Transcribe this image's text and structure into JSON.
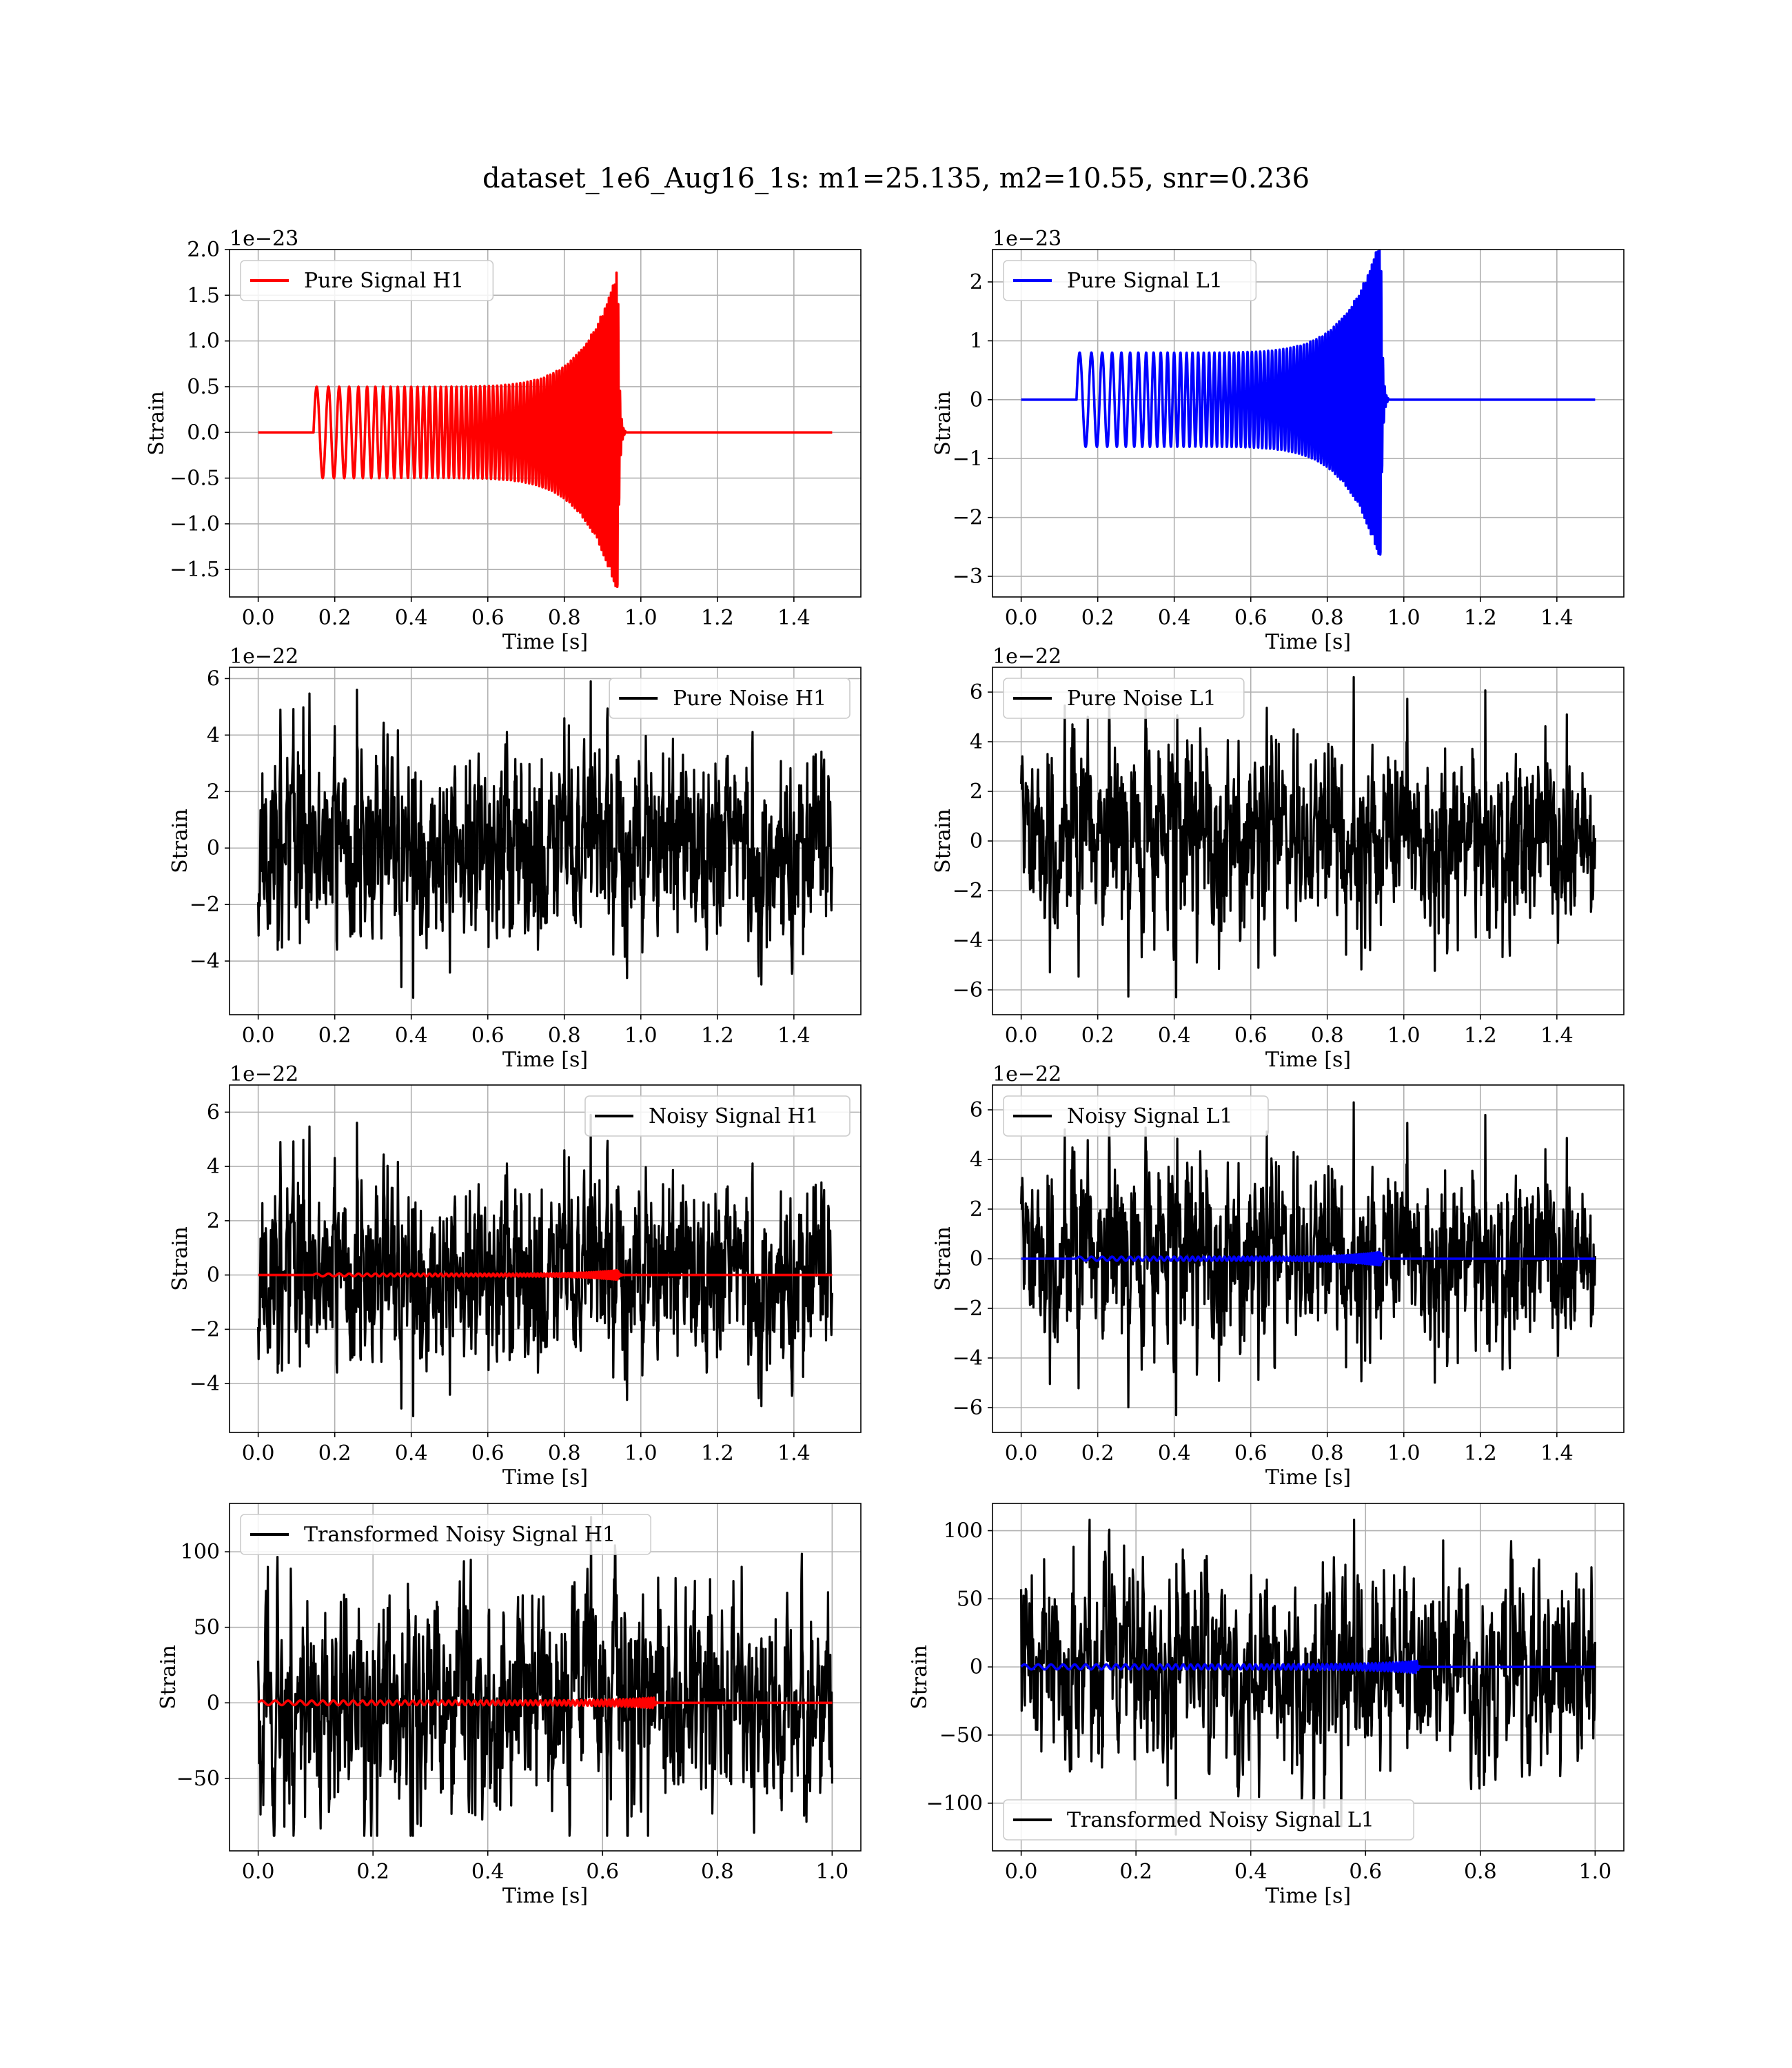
{
  "figure": {
    "title": "dataset_1e6_Aug16_1s: m1=25.135, m2=10.55, snr=0.236"
  },
  "colors": {
    "signal_h1": "#ff0000",
    "signal_l1": "#0000ff",
    "noise": "#000000",
    "grid": "#b0b0b0"
  },
  "chart_data": [
    {
      "id": "pure-signal-h1",
      "type": "line",
      "xlabel": "Time [s]",
      "ylabel": "Strain",
      "offset_text": "1e−23",
      "legend": {
        "label": "Pure Signal H1",
        "placement": "upper left"
      },
      "xlim": [
        -0.075,
        1.575
      ],
      "ylim": [
        -1.8,
        2.0
      ],
      "xticks": [
        0.0,
        0.2,
        0.4,
        0.6,
        0.8,
        1.0,
        1.2,
        1.4
      ],
      "xtick_labels": [
        "0.0",
        "0.2",
        "0.4",
        "0.6",
        "0.8",
        "1.0",
        "1.2",
        "1.4"
      ],
      "yticks": [
        -1.5,
        -1.0,
        -0.5,
        0.0,
        0.5,
        1.0,
        1.5,
        2.0
      ],
      "ytick_labels": [
        "−1.5",
        "−1.0",
        "−0.5",
        "0.0",
        "0.5",
        "1.0",
        "1.5",
        "2.0"
      ],
      "grid": true,
      "series": [
        {
          "name": "Pure Signal H1",
          "kind": "chirp",
          "color": "#ff0000",
          "x_start": 0.0,
          "x_end": 1.5,
          "t_start": 0.145,
          "t_merge": 0.94,
          "ringdown": 0.02,
          "amp_start": 0.5,
          "amp_peak": 1.8,
          "f_start": 30,
          "f_end": 220,
          "sample_step": 0.0005
        }
      ]
    },
    {
      "id": "pure-signal-l1",
      "type": "line",
      "xlabel": "Time [s]",
      "ylabel": "Strain",
      "offset_text": "1e−23",
      "legend": {
        "label": "Pure Signal L1",
        "placement": "upper left"
      },
      "xlim": [
        -0.075,
        1.575
      ],
      "ylim": [
        -3.35,
        2.55
      ],
      "xticks": [
        0.0,
        0.2,
        0.4,
        0.6,
        0.8,
        1.0,
        1.2,
        1.4
      ],
      "xtick_labels": [
        "0.0",
        "0.2",
        "0.4",
        "0.6",
        "0.8",
        "1.0",
        "1.2",
        "1.4"
      ],
      "yticks": [
        -3,
        -2,
        -1,
        0,
        1,
        2
      ],
      "ytick_labels": [
        "−3",
        "−2",
        "−1",
        "0",
        "1",
        "2"
      ],
      "grid": true,
      "series": [
        {
          "name": "Pure Signal L1",
          "kind": "chirp",
          "color": "#0000ff",
          "x_start": 0.0,
          "x_end": 1.5,
          "t_start": 0.145,
          "t_merge": 0.94,
          "ringdown": 0.02,
          "amp_start": 0.8,
          "amp_peak": 2.8,
          "f_start": 30,
          "f_end": 220,
          "sample_step": 0.0005
        }
      ]
    },
    {
      "id": "pure-noise-h1",
      "type": "line",
      "xlabel": "Time [s]",
      "ylabel": "Strain",
      "offset_text": "1e−22",
      "legend": {
        "label": "Pure Noise H1",
        "placement": "upper right"
      },
      "xlim": [
        -0.075,
        1.575
      ],
      "ylim": [
        -5.9,
        6.4
      ],
      "xticks": [
        0.0,
        0.2,
        0.4,
        0.6,
        0.8,
        1.0,
        1.2,
        1.4
      ],
      "xtick_labels": [
        "0.0",
        "0.2",
        "0.4",
        "0.6",
        "0.8",
        "1.0",
        "1.2",
        "1.4"
      ],
      "yticks": [
        -4,
        -2,
        0,
        2,
        4,
        6
      ],
      "ytick_labels": [
        "−4",
        "−2",
        "0",
        "2",
        "4",
        "6"
      ],
      "grid": true,
      "series": [
        {
          "name": "Pure Noise H1",
          "kind": "noise",
          "color": "#000000",
          "x_start": 0.0,
          "x_end": 1.5,
          "sigma": 1.6,
          "min": -5.3,
          "max": 5.9,
          "seed": 11,
          "sample_step": 0.001
        }
      ]
    },
    {
      "id": "pure-noise-l1",
      "type": "line",
      "xlabel": "Time [s]",
      "ylabel": "Strain",
      "offset_text": "1e−22",
      "legend": {
        "label": "Pure Noise L1",
        "placement": "upper left"
      },
      "xlim": [
        -0.075,
        1.575
      ],
      "ylim": [
        -7.0,
        7.0
      ],
      "xticks": [
        0.0,
        0.2,
        0.4,
        0.6,
        0.8,
        1.0,
        1.2,
        1.4
      ],
      "xtick_labels": [
        "0.0",
        "0.2",
        "0.4",
        "0.6",
        "0.8",
        "1.0",
        "1.2",
        "1.4"
      ],
      "yticks": [
        -6,
        -4,
        -2,
        0,
        2,
        4,
        6
      ],
      "ytick_labels": [
        "−6",
        "−4",
        "−2",
        "0",
        "2",
        "4",
        "6"
      ],
      "grid": true,
      "series": [
        {
          "name": "Pure Noise L1",
          "kind": "noise",
          "color": "#000000",
          "x_start": 0.0,
          "x_end": 1.5,
          "sigma": 1.7,
          "min": -6.3,
          "max": 6.6,
          "seed": 23,
          "sample_step": 0.001
        }
      ]
    },
    {
      "id": "noisy-signal-h1",
      "type": "line",
      "xlabel": "Time [s]",
      "ylabel": "Strain",
      "offset_text": "1e−22",
      "legend": {
        "label": "Noisy Signal H1",
        "placement": "upper right"
      },
      "xlim": [
        -0.075,
        1.575
      ],
      "ylim": [
        -5.8,
        7.0
      ],
      "xticks": [
        0.0,
        0.2,
        0.4,
        0.6,
        0.8,
        1.0,
        1.2,
        1.4
      ],
      "xtick_labels": [
        "0.0",
        "0.2",
        "0.4",
        "0.6",
        "0.8",
        "1.0",
        "1.2",
        "1.4"
      ],
      "yticks": [
        -4,
        -2,
        0,
        2,
        4,
        6
      ],
      "ytick_labels": [
        "−4",
        "−2",
        "0",
        "2",
        "4",
        "6"
      ],
      "grid": true,
      "series": [
        {
          "name": "Noisy Signal H1",
          "kind": "noise",
          "color": "#000000",
          "x_start": 0.0,
          "x_end": 1.5,
          "sigma": 1.6,
          "min": -5.2,
          "max": 5.9,
          "seed": 11,
          "sample_step": 0.001
        },
        {
          "kind": "chirp",
          "color": "#ff0000",
          "x_start": 0.0,
          "x_end": 1.5,
          "t_start": 0.145,
          "t_merge": 0.94,
          "ringdown": 0.02,
          "amp_start": 0.05,
          "amp_peak": 0.18,
          "f_start": 30,
          "f_end": 220,
          "sample_step": 0.0005
        }
      ]
    },
    {
      "id": "noisy-signal-l1",
      "type": "line",
      "xlabel": "Time [s]",
      "ylabel": "Strain",
      "offset_text": "1e−22",
      "legend": {
        "label": "Noisy Signal L1",
        "placement": "upper left"
      },
      "xlim": [
        -0.075,
        1.575
      ],
      "ylim": [
        -7.0,
        7.0
      ],
      "xticks": [
        0.0,
        0.2,
        0.4,
        0.6,
        0.8,
        1.0,
        1.2,
        1.4
      ],
      "xtick_labels": [
        "0.0",
        "0.2",
        "0.4",
        "0.6",
        "0.8",
        "1.0",
        "1.2",
        "1.4"
      ],
      "yticks": [
        -6,
        -4,
        -2,
        0,
        2,
        4,
        6
      ],
      "ytick_labels": [
        "−6",
        "−4",
        "−2",
        "0",
        "2",
        "4",
        "6"
      ],
      "grid": true,
      "series": [
        {
          "name": "Noisy Signal L1",
          "kind": "noise",
          "color": "#000000",
          "x_start": 0.0,
          "x_end": 1.5,
          "sigma": 1.7,
          "min": -6.3,
          "max": 6.3,
          "seed": 23,
          "sample_step": 0.001
        },
        {
          "kind": "chirp",
          "color": "#0000ff",
          "x_start": 0.0,
          "x_end": 1.5,
          "t_start": 0.145,
          "t_merge": 0.94,
          "ringdown": 0.02,
          "amp_start": 0.08,
          "amp_peak": 0.28,
          "f_start": 30,
          "f_end": 220,
          "sample_step": 0.0005
        }
      ]
    },
    {
      "id": "transformed-noisy-signal-h1",
      "type": "line",
      "xlabel": "Time [s]",
      "ylabel": "Strain",
      "offset_text": "",
      "legend": {
        "label": "Transformed Noisy Signal H1",
        "placement": "upper left"
      },
      "xlim": [
        -0.05,
        1.05
      ],
      "ylim": [
        -98,
        132
      ],
      "xticks": [
        0.0,
        0.2,
        0.4,
        0.6,
        0.8,
        1.0
      ],
      "xtick_labels": [
        "0.0",
        "0.2",
        "0.4",
        "0.6",
        "0.8",
        "1.0"
      ],
      "yticks": [
        -50,
        0,
        50,
        100
      ],
      "ytick_labels": [
        "−50",
        "0",
        "50",
        "100"
      ],
      "grid": true,
      "series": [
        {
          "name": "Transformed Noisy Signal H1",
          "kind": "noise",
          "color": "#000000",
          "x_start": 0.0,
          "x_end": 1.0,
          "sigma": 26,
          "min": -88,
          "max": 123,
          "seed": 37,
          "sample_step": 0.0008
        },
        {
          "kind": "chirp",
          "color": "#ff0000",
          "x_start": 0.0,
          "x_end": 1.0,
          "t_start": 0.0,
          "t_merge": 0.69,
          "ringdown": 0.01,
          "amp_start": 1.5,
          "amp_peak": 3.5,
          "f_start": 40,
          "f_end": 220,
          "sample_step": 0.0004
        }
      ]
    },
    {
      "id": "transformed-noisy-signal-l1",
      "type": "line",
      "xlabel": "Time [s]",
      "ylabel": "Strain",
      "offset_text": "",
      "legend": {
        "label": "Transformed Noisy Signal L1",
        "placement": "lower left"
      },
      "xlim": [
        -0.05,
        1.05
      ],
      "ylim": [
        -135,
        120
      ],
      "xticks": [
        0.0,
        0.2,
        0.4,
        0.6,
        0.8,
        1.0
      ],
      "xtick_labels": [
        "0.0",
        "0.2",
        "0.4",
        "0.6",
        "0.8",
        "1.0"
      ],
      "yticks": [
        -100,
        -50,
        0,
        50,
        100
      ],
      "ytick_labels": [
        "−100",
        "−50",
        "0",
        "50",
        "100"
      ],
      "grid": true,
      "series": [
        {
          "name": "Transformed Noisy Signal L1",
          "kind": "noise",
          "color": "#000000",
          "x_start": 0.0,
          "x_end": 1.0,
          "sigma": 30,
          "min": -123,
          "max": 108,
          "seed": 53,
          "sample_step": 0.0008
        },
        {
          "kind": "chirp",
          "color": "#0000ff",
          "x_start": 0.0,
          "x_end": 1.0,
          "t_start": 0.0,
          "t_merge": 0.69,
          "ringdown": 0.01,
          "amp_start": 1.8,
          "amp_peak": 4.5,
          "f_start": 40,
          "f_end": 220,
          "sample_step": 0.0004
        }
      ]
    }
  ]
}
